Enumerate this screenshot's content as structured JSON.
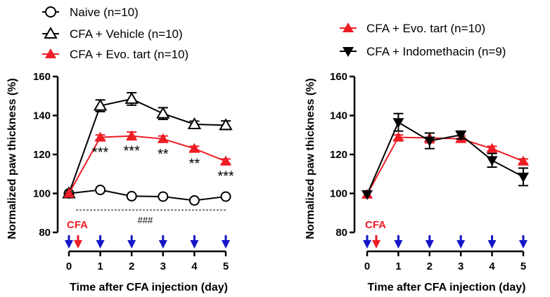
{
  "colors": {
    "black": "#000000",
    "red": "#ee1c25",
    "blue": "#1515c8"
  },
  "chart_data": [
    {
      "type": "line",
      "title": "",
      "xlabel": "Time after CFA injection (day)",
      "ylabel": "Normalized paw thickness (%)",
      "ylim": [
        80,
        160
      ],
      "xlim": [
        0,
        5
      ],
      "yticks": [
        "80",
        "100",
        "120",
        "140",
        "160"
      ],
      "xticks": [
        "0",
        "1",
        "2",
        "3",
        "4",
        "5"
      ],
      "x": [
        0,
        1,
        2,
        3,
        4,
        5
      ],
      "series": [
        {
          "name": "Naive (n=10)",
          "marker": "circle",
          "color": "#000000",
          "values": [
            100,
            101.8,
            98.6,
            98.4,
            96.4,
            98.4
          ],
          "errors": [
            0,
            0.5,
            0.5,
            0.5,
            0.6,
            0.5
          ]
        },
        {
          "name": "CFA + Vehicle (n=10)",
          "marker": "triangle-up-open",
          "color": "#000000",
          "values": [
            100,
            145,
            148.5,
            141,
            135.5,
            135
          ],
          "errors": [
            0,
            3,
            3.2,
            3,
            1.6,
            2.2
          ]
        },
        {
          "name": "CFA + Evo. tart (n=10)",
          "marker": "triangle-up-filled",
          "color": "#ee1c25",
          "values": [
            100,
            128.8,
            129.5,
            128,
            123,
            116.5
          ],
          "errors": [
            0,
            1.2,
            2,
            1.5,
            1.2,
            1.2
          ]
        }
      ],
      "significance": [
        {
          "x": 1,
          "label": "***"
        },
        {
          "x": 2,
          "label": "***"
        },
        {
          "x": 3,
          "label": "**"
        },
        {
          "x": 4,
          "label": "**"
        },
        {
          "x": 5,
          "label": "***"
        }
      ],
      "hash_annotation": {
        "label": "###",
        "y": 91.5
      },
      "cfa_label": "CFA",
      "injection_days": [
        0,
        1,
        2,
        3,
        4,
        5
      ]
    },
    {
      "type": "line",
      "title": "",
      "xlabel": "Time after CFA injection (day)",
      "ylabel": "Normalized paw thickness (%)",
      "ylim": [
        80,
        160
      ],
      "xlim": [
        0,
        5
      ],
      "yticks": [
        "80",
        "100",
        "120",
        "140",
        "160"
      ],
      "xticks": [
        "0",
        "1",
        "2",
        "3",
        "4",
        "5"
      ],
      "x": [
        0,
        1,
        2,
        3,
        4,
        5
      ],
      "series": [
        {
          "name": "CFA + Evo. tart (n=10)",
          "marker": "triangle-up-filled",
          "color": "#ee1c25",
          "values": [
            99.5,
            128.8,
            128.5,
            128,
            123,
            116.5
          ],
          "errors": [
            0,
            1.2,
            2.5,
            1.5,
            1.2,
            1.2
          ]
        },
        {
          "name": "CFA + Indomethacin (n=9)",
          "marker": "triangle-down-filled",
          "color": "#000000",
          "values": [
            99.5,
            136.5,
            127,
            130,
            117,
            108.5
          ],
          "errors": [
            0,
            4.5,
            4,
            2,
            3.5,
            4.5
          ]
        }
      ],
      "cfa_label": "CFA",
      "injection_days": [
        0,
        1,
        2,
        3,
        4,
        5
      ]
    }
  ]
}
